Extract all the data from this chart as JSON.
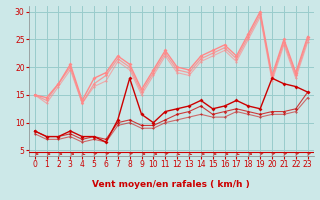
{
  "xlabel": "Vent moyen/en rafales ( km/h )",
  "bg_color": "#cce8e8",
  "grid_color": "#99cccc",
  "xlim": [
    -0.5,
    23.5
  ],
  "ylim": [
    4,
    31
  ],
  "yticks": [
    5,
    10,
    15,
    20,
    25,
    30
  ],
  "xticks": [
    0,
    1,
    2,
    3,
    4,
    5,
    6,
    7,
    8,
    9,
    10,
    11,
    12,
    13,
    14,
    15,
    16,
    17,
    18,
    19,
    20,
    21,
    22,
    23
  ],
  "series_dark": [
    {
      "x": [
        0,
        1,
        2,
        3,
        4,
        5,
        6,
        7,
        8,
        9,
        10,
        11,
        12,
        13,
        14,
        15,
        16,
        17,
        18,
        19,
        20,
        21,
        22,
        23
      ],
      "y": [
        8.5,
        7.5,
        7.5,
        8.5,
        7.5,
        7.5,
        6.5,
        10.5,
        18,
        11.5,
        10,
        12,
        12.5,
        13,
        14,
        12.5,
        13,
        14,
        13,
        12.5,
        18,
        17,
        16.5,
        15.5
      ],
      "color": "#cc0000",
      "lw": 1.0,
      "marker": "D",
      "ms": 2.0,
      "alpha": 1.0
    },
    {
      "x": [
        0,
        1,
        2,
        3,
        4,
        5,
        6,
        7,
        8,
        9,
        10,
        11,
        12,
        13,
        14,
        15,
        16,
        17,
        18,
        19,
        20,
        21,
        22,
        23
      ],
      "y": [
        8.5,
        7.5,
        7.5,
        8,
        7,
        7.5,
        7,
        10,
        10.5,
        9.5,
        9.5,
        10.5,
        11.5,
        12,
        13,
        11.5,
        12,
        12.5,
        12,
        11.5,
        12,
        12,
        12.5,
        15.5
      ],
      "color": "#cc0000",
      "lw": 0.8,
      "marker": "D",
      "ms": 1.8,
      "alpha": 0.75
    },
    {
      "x": [
        0,
        1,
        2,
        3,
        4,
        5,
        6,
        7,
        8,
        9,
        10,
        11,
        12,
        13,
        14,
        15,
        16,
        17,
        18,
        19,
        20,
        21,
        22,
        23
      ],
      "y": [
        8,
        7,
        7,
        7.5,
        6.5,
        7,
        6.5,
        9.5,
        10,
        9,
        9,
        10,
        10.5,
        11,
        11.5,
        11,
        11,
        12,
        11.5,
        11,
        11.5,
        11.5,
        12,
        14.5
      ],
      "color": "#cc0000",
      "lw": 0.8,
      "marker": "D",
      "ms": 1.5,
      "alpha": 0.55
    }
  ],
  "series_light": [
    {
      "x": [
        0,
        1,
        2,
        3,
        4,
        5,
        6,
        7,
        8,
        9,
        10,
        11,
        12,
        13,
        14,
        15,
        16,
        17,
        18,
        19,
        20,
        21,
        22,
        23
      ],
      "y": [
        15,
        14.5,
        17,
        20.5,
        14,
        18,
        19,
        22,
        20.5,
        16,
        19.5,
        23,
        20,
        19.5,
        22,
        23,
        24,
        22,
        26,
        30,
        18.5,
        25,
        19,
        25.5
      ],
      "color": "#ff8888",
      "lw": 1.0,
      "marker": "D",
      "ms": 2.0,
      "alpha": 1.0
    },
    {
      "x": [
        0,
        1,
        2,
        3,
        4,
        5,
        6,
        7,
        8,
        9,
        10,
        11,
        12,
        13,
        14,
        15,
        16,
        17,
        18,
        19,
        20,
        21,
        22,
        23
      ],
      "y": [
        15,
        14,
        17,
        20,
        13.5,
        17,
        18.5,
        21.5,
        20,
        15.5,
        19,
        22.5,
        19.5,
        19,
        21.5,
        22.5,
        23.5,
        21.5,
        25.5,
        29.5,
        18,
        24.5,
        18.5,
        25
      ],
      "color": "#ff8888",
      "lw": 0.9,
      "marker": "D",
      "ms": 1.8,
      "alpha": 0.8
    },
    {
      "x": [
        0,
        1,
        2,
        3,
        4,
        5,
        6,
        7,
        8,
        9,
        10,
        11,
        12,
        13,
        14,
        15,
        16,
        17,
        18,
        19,
        20,
        21,
        22,
        23
      ],
      "y": [
        15,
        13.5,
        16.5,
        19.5,
        13.5,
        16.5,
        17.5,
        21,
        19.5,
        15,
        18.5,
        22,
        19,
        18.5,
        21,
        22,
        23,
        21,
        25,
        29,
        17.5,
        24,
        18,
        24.5
      ],
      "color": "#ff8888",
      "lw": 0.8,
      "marker": "D",
      "ms": 1.5,
      "alpha": 0.65
    }
  ],
  "wind_dirs": [
    0,
    0,
    0,
    0,
    315,
    45,
    45,
    45,
    45,
    0,
    0,
    45,
    315,
    315,
    0,
    0,
    0,
    315,
    0,
    45,
    45,
    45,
    45,
    45
  ],
  "arrow_color": "#cc2222",
  "xlabel_color": "#cc0000",
  "xlabel_fontsize": 6.5,
  "tick_fontsize": 5.5
}
